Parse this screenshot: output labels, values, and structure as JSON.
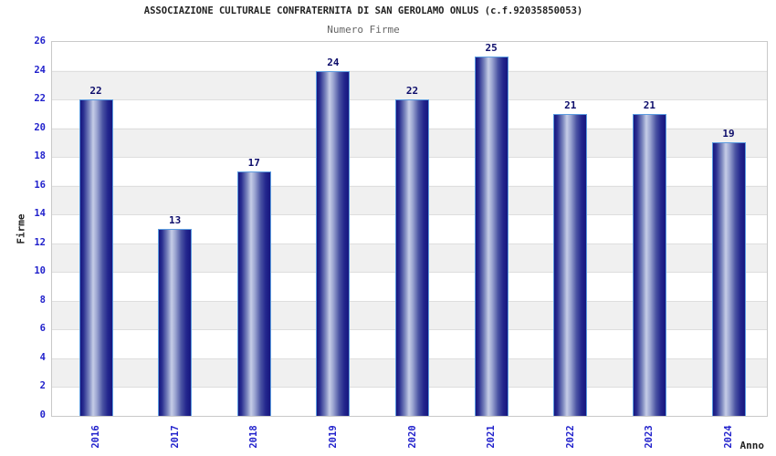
{
  "chart_data": {
    "type": "bar",
    "title": "ASSOCIAZIONE CULTURALE CONFRATERNITA DI SAN GEROLAMO ONLUS (c.f.92035850053)",
    "subtitle": "Numero Firme",
    "xlabel": "Anno",
    "ylabel": "Firme",
    "categories": [
      "2016",
      "2017",
      "2018",
      "2019",
      "2020",
      "2021",
      "2022",
      "2023",
      "2024"
    ],
    "values": [
      22,
      13,
      17,
      24,
      22,
      25,
      21,
      21,
      19
    ],
    "ylim": [
      0,
      26
    ],
    "ytick_step": 2,
    "legend": "none",
    "grid": "horizontal gridlines every 2 units with alternating white/gray bands",
    "bar_label_position": "above bar, bold dark navy",
    "x_tick_rotation": -90
  },
  "colors": {
    "title": "#222222",
    "subtitle": "#666666",
    "axis_tick": "#2222cc",
    "axis_title": "#222222",
    "value_label": "#0d0d6b",
    "bar_dark": "#16167f",
    "bar_light": "#c6cde7",
    "bar_border": "#5c9ce0",
    "band_gray": "#f0f0f0",
    "grid_line": "#dedede",
    "plot_border": "#c9c9c9"
  }
}
